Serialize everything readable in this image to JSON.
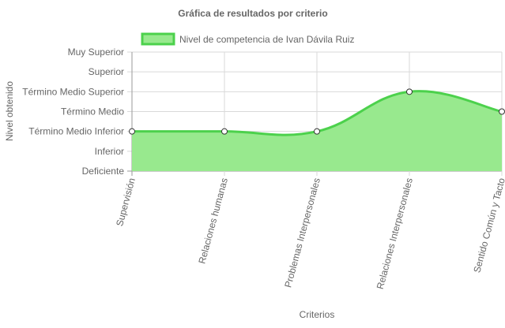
{
  "chart_data": {
    "type": "line",
    "title": "Gráfica de resultados por criterio",
    "xlabel": "Criterios",
    "ylabel": "Nivel obtenido",
    "categories": [
      "Supervisión",
      "Relaciones humanas",
      "Problemas Interpersonales",
      "Relaciones Interpersonales",
      "Sentido Común y Tacto"
    ],
    "y_levels": [
      "Deficiente",
      "Inferior",
      "Término Medio Inferior",
      "Término Medio",
      "Término Medio Superior",
      "Superior",
      "Muy Superior"
    ],
    "ylim": [
      0,
      6
    ],
    "series": [
      {
        "name": "Nivel de competencia de Ivan Dávila Ruiz",
        "values": [
          2,
          2,
          2,
          4,
          3
        ]
      }
    ],
    "fill": true,
    "smooth": true,
    "grid": true,
    "legend_position": "top",
    "colors": {
      "line": "#4cd14c",
      "fill": "#98e98e",
      "point_fill": "#ffffff",
      "point_stroke": "#333333",
      "grid": "#d9d9d9",
      "axis": "#999999",
      "text": "#666666"
    }
  }
}
